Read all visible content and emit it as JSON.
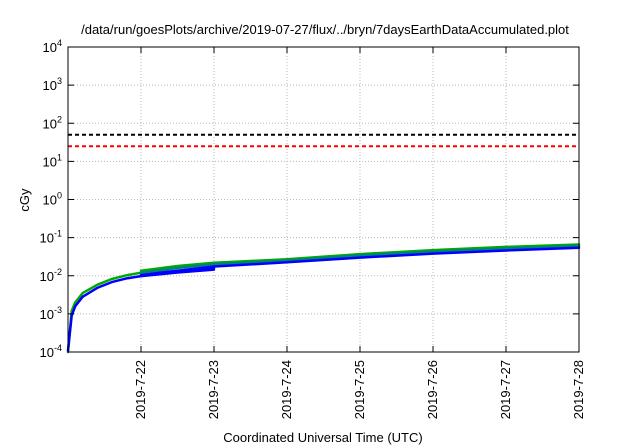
{
  "chart_data": {
    "type": "line",
    "title": "/data/run/goesPlots/archive/2019-07-27/flux/../bryn/7daysEarthDataAccumulated.plot",
    "xlabel": "Coordinated Universal Time (UTC)",
    "ylabel": "cGy",
    "x_scale": "time",
    "y_scale": "log",
    "xlim": [
      "2019-07-21",
      "2019-07-28"
    ],
    "ylim": [
      0.0001,
      10000
    ],
    "y_ticks": [
      {
        "value": 0.0001,
        "base": "10",
        "exp": "-4"
      },
      {
        "value": 0.001,
        "base": "10",
        "exp": "-3"
      },
      {
        "value": 0.01,
        "base": "10",
        "exp": "-2"
      },
      {
        "value": 0.1,
        "base": "10",
        "exp": "-1"
      },
      {
        "value": 1,
        "base": "10",
        "exp": "0"
      },
      {
        "value": 10,
        "base": "10",
        "exp": "1"
      },
      {
        "value": 100,
        "base": "10",
        "exp": "2"
      },
      {
        "value": 1000,
        "base": "10",
        "exp": "3"
      },
      {
        "value": 10000,
        "base": "10",
        "exp": "4"
      }
    ],
    "x_ticks": [
      {
        "date": "2019-07-22",
        "label": "2019-7-22"
      },
      {
        "date": "2019-07-23",
        "label": "2019-7-23"
      },
      {
        "date": "2019-07-24",
        "label": "2019-7-24"
      },
      {
        "date": "2019-07-25",
        "label": "2019-7-25"
      },
      {
        "date": "2019-07-26",
        "label": "2019-7-26"
      },
      {
        "date": "2019-07-27",
        "label": "2019-7-27"
      },
      {
        "date": "2019-07-28",
        "label": "2019-7-28"
      }
    ],
    "grid": true,
    "legend": "none",
    "reference_lines": [
      {
        "value": 50,
        "color": "#000000",
        "style": "dashed"
      },
      {
        "value": 25,
        "color": "#ff0000",
        "style": "dashed"
      }
    ],
    "series": [
      {
        "color": "#00aa00",
        "x": [
          "2019-07-21T00:00",
          "2019-07-21T01:12",
          "2019-07-21T02:24",
          "2019-07-21T04:48",
          "2019-07-21T09:36",
          "2019-07-21T14:24",
          "2019-07-21T19:12",
          "2019-07-22T00:00"
        ],
        "y": [
          0.0001,
          0.0012,
          0.002,
          0.0035,
          0.0058,
          0.0082,
          0.0103,
          0.012
        ]
      },
      {
        "color": "#0000ff",
        "x": [
          "2019-07-21T00:00",
          "2019-07-21T01:12",
          "2019-07-21T02:24",
          "2019-07-21T04:48",
          "2019-07-21T09:36",
          "2019-07-21T14:24",
          "2019-07-21T19:12",
          "2019-07-22T00:00",
          "2019-07-22T12:00",
          "2019-07-23T00:00"
        ],
        "y": [
          0.00011,
          0.0009,
          0.0016,
          0.0028,
          0.0048,
          0.0068,
          0.0085,
          0.0098,
          0.0122,
          0.0145
        ]
      },
      {
        "color": "#0000ff",
        "x": [
          "2019-07-22T00:00",
          "2019-07-22T12:00",
          "2019-07-23T00:00"
        ],
        "y": [
          0.0112,
          0.0133,
          0.0158
        ]
      },
      {
        "color": "#00aa00",
        "x": [
          "2019-07-22T00:00",
          "2019-07-22T12:00",
          "2019-07-23T00:00",
          "2019-07-24T00:00",
          "2019-07-25T00:00",
          "2019-07-26T00:00",
          "2019-07-27T00:00",
          "2019-07-28T00:00"
        ],
        "y": [
          0.0135,
          0.018,
          0.022,
          0.027,
          0.037,
          0.047,
          0.057,
          0.066
        ]
      },
      {
        "color": "#008080",
        "x": [
          "2019-07-22T00:00",
          "2019-07-22T12:00",
          "2019-07-23T00:00",
          "2019-07-24T00:00",
          "2019-07-25T00:00",
          "2019-07-26T00:00",
          "2019-07-27T00:00",
          "2019-07-28T00:00"
        ],
        "y": [
          0.012,
          0.016,
          0.02,
          0.025,
          0.034,
          0.043,
          0.052,
          0.06
        ]
      },
      {
        "color": "#0000ff",
        "x": [
          "2019-07-22T00:00",
          "2019-07-22T12:00",
          "2019-07-23T00:00",
          "2019-07-24T00:00",
          "2019-07-25T00:00",
          "2019-07-26T00:00",
          "2019-07-27T00:00",
          "2019-07-28T00:00"
        ],
        "y": [
          0.0103,
          0.0135,
          0.0175,
          0.0225,
          0.03,
          0.038,
          0.046,
          0.054
        ]
      }
    ]
  }
}
